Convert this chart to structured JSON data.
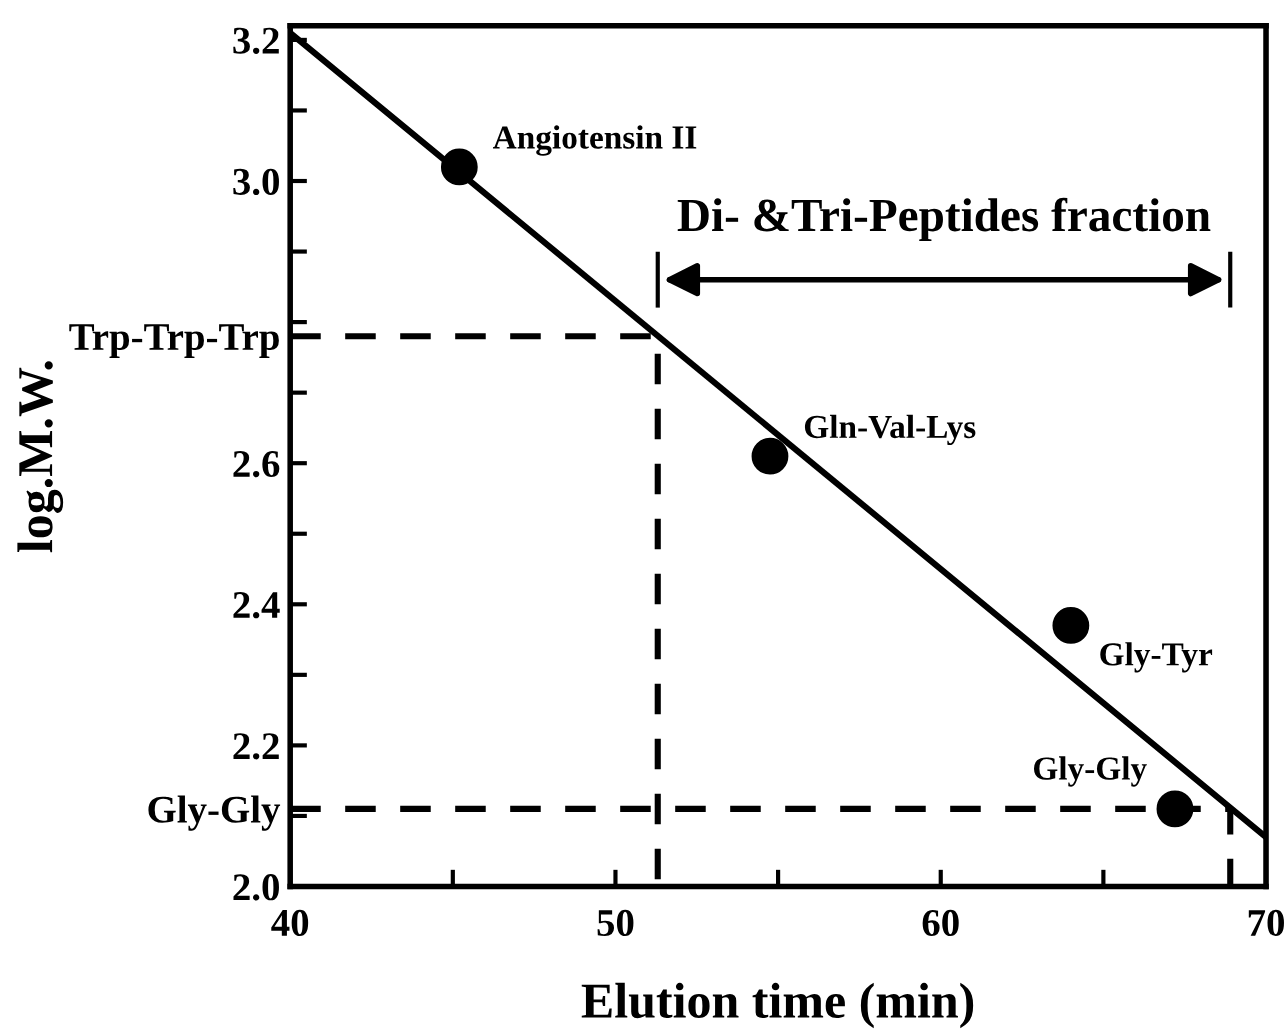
{
  "chart_data": {
    "type": "scatter",
    "xlabel": "Elution time (min)",
    "ylabel": "log.M.W.",
    "xlim": [
      40,
      70
    ],
    "ylim": [
      2.0,
      3.22
    ],
    "xticks": [
      40,
      {
        "value": 45,
        "label": null
      },
      50,
      {
        "value": 55,
        "label": null
      },
      60,
      {
        "value": 65,
        "label": null
      },
      70
    ],
    "yticks": [
      {
        "value": 2.0,
        "label": "2.0"
      },
      {
        "value": 2.1,
        "label": null
      },
      {
        "value": 2.11,
        "label": "Gly-Gly"
      },
      2.2,
      {
        "value": 2.3,
        "label": null
      },
      2.4,
      {
        "value": 2.5,
        "label": null
      },
      2.6,
      {
        "value": 2.7,
        "label": null
      },
      {
        "value": 2.78,
        "label": "Trp-Trp-Trp"
      },
      {
        "value": 2.8,
        "label": null
      },
      {
        "value": 2.9,
        "label": null
      },
      {
        "value": 3.0,
        "label": "3.0"
      },
      {
        "value": 3.1,
        "label": null
      },
      3.2
    ],
    "grid": false,
    "series": [
      {
        "marker": "circle",
        "color": "#000000",
        "x": [
          45.2,
          54.75,
          64.0,
          67.2
        ],
        "values": [
          3.02,
          2.61,
          2.37,
          2.11
        ]
      },
      {
        "type": "line",
        "color": "#000000",
        "line_style": "solid",
        "x": [
          40,
          70
        ],
        "values": [
          3.21,
          2.07
        ]
      },
      {
        "type": "line",
        "color": "#000000",
        "line_style": "dashed",
        "x": [
          40,
          51.3,
          51.3
        ],
        "values": [
          2.78,
          2.78,
          2.0
        ]
      },
      {
        "type": "line",
        "color": "#000000",
        "line_style": "dashed",
        "x": [
          40,
          68.9,
          68.9
        ],
        "values": [
          2.11,
          2.11,
          2.0
        ]
      }
    ],
    "annotations": [
      "Di- &Tri-Peptides fraction",
      {
        "text": "Angiotensin II",
        "x": 45.2,
        "y": 3.02
      },
      {
        "text": "Gln-Val-Lys",
        "x": 54.75,
        "y": 2.61
      },
      {
        "text": "Gly-Tyr",
        "x": 64.0,
        "y": 2.37
      },
      {
        "text": "Gly-Gly",
        "x": 67.2,
        "y": 2.11
      }
    ]
  }
}
